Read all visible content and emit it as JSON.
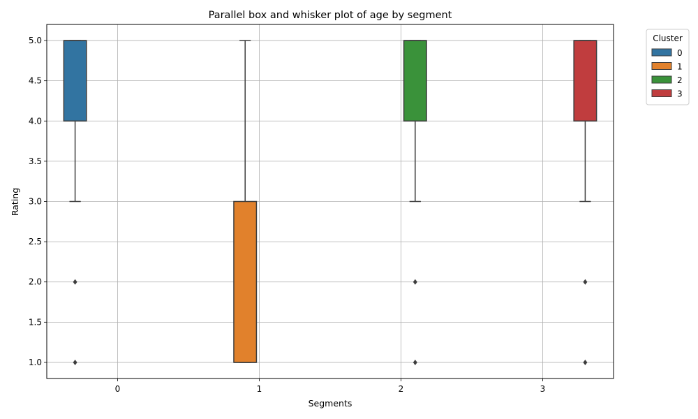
{
  "chart_data": {
    "type": "box",
    "title": "Parallel box and whisker plot of age by segment",
    "xlabel": "Segments",
    "ylabel": "Rating",
    "categories": [
      "0",
      "1",
      "2",
      "3"
    ],
    "ylim": [
      0.8,
      5.2
    ],
    "yticks": [
      "1.0",
      "1.5",
      "2.0",
      "2.5",
      "3.0",
      "3.5",
      "4.0",
      "4.5",
      "5.0"
    ],
    "grid": true,
    "legend": {
      "title": "Cluster",
      "placement": "outside-top-right"
    },
    "series": [
      {
        "name": "0",
        "color": "#3274a1",
        "category": "0",
        "q1": 4,
        "median": 5,
        "q3": 5,
        "whisker_low": 3,
        "whisker_high": 5,
        "outliers": [
          2,
          1
        ]
      },
      {
        "name": "1",
        "color": "#e1812c",
        "category": "1",
        "q1": 1,
        "median": 1,
        "q3": 3,
        "whisker_low": 1,
        "whisker_high": 5,
        "outliers": []
      },
      {
        "name": "2",
        "color": "#3a923a",
        "category": "2",
        "q1": 4,
        "median": 5,
        "q3": 5,
        "whisker_low": 3,
        "whisker_high": 5,
        "outliers": [
          2,
          1
        ]
      },
      {
        "name": "3",
        "color": "#c03d3e",
        "category": "3",
        "q1": 4,
        "median": 5,
        "q3": 5,
        "whisker_low": 3,
        "whisker_high": 5,
        "outliers": [
          2,
          1
        ]
      }
    ]
  }
}
